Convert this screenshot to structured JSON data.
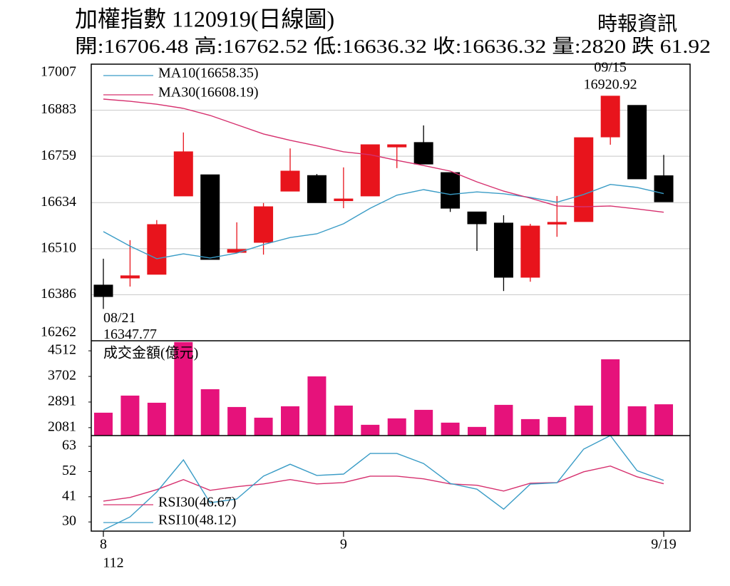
{
  "header": {
    "title": "加權指數 1120919(日線圖)",
    "source": "時報資訊",
    "summary": "開:16706.48 高:16762.52 低:16636.32 收:16636.32 量:2820 跌 61.92"
  },
  "chart_data": [
    {
      "type": "candlestick",
      "ylim": [
        16262,
        17007
      ],
      "yticks": [
        16262,
        16386,
        16510,
        16634,
        16759,
        16883,
        17007
      ],
      "grid": true,
      "up_color": "#e8141c",
      "down_color": "#000000",
      "open": [
        16412,
        16431,
        16441,
        16652,
        16709,
        16500,
        16527,
        16665,
        16707,
        16640,
        16652,
        16784,
        16796,
        16715,
        16609,
        16579,
        16433,
        16577,
        16583,
        16811,
        16896,
        16706.48
      ],
      "high": [
        16483,
        16533,
        16587,
        16823,
        16709,
        16581,
        16633,
        16780,
        16711,
        16729,
        16790,
        16790,
        16842,
        16715,
        16609,
        16600,
        16577,
        16652,
        16809,
        16920.92,
        16896,
        16762.52
      ],
      "low": [
        16347.77,
        16408,
        16441,
        16652,
        16481,
        16498,
        16494,
        16665,
        16634,
        16619,
        16652,
        16727,
        16738,
        16609,
        16504,
        16396,
        16421,
        16542,
        16583,
        16790,
        16698,
        16636.32
      ],
      "close": [
        16381,
        16437,
        16575,
        16771,
        16481,
        16508,
        16623,
        16719,
        16634,
        16644,
        16790,
        16790,
        16738,
        16619,
        16577,
        16433,
        16571,
        16581,
        16809,
        16920.92,
        16698,
        16636.32
      ],
      "series": [
        {
          "name": "MA10(16658.35)",
          "color": "#3a9cc6",
          "values": [
            16556,
            16517,
            16483,
            16496,
            16485,
            16498,
            16521,
            16540,
            16550,
            16577,
            16619,
            16654,
            16669,
            16656,
            16663,
            16658,
            16648,
            16635,
            16656,
            16683,
            16675,
            16658.35
          ]
        },
        {
          "name": "MA30(16608.19)",
          "color": "#d6306e",
          "values": [
            16913,
            16907,
            16899,
            16888,
            16869,
            16844,
            16819,
            16802,
            16787,
            16771,
            16763,
            16748,
            16734,
            16719,
            16690,
            16665,
            16646,
            16625,
            16623,
            16625,
            16617,
            16608.19
          ]
        }
      ],
      "annotations": [
        {
          "text": "09/15",
          "value": 16920.92,
          "at": "high"
        },
        {
          "text": "08/21",
          "value": 16347.77,
          "at": "low"
        }
      ]
    },
    {
      "type": "bar",
      "ylim": [
        1830,
        4830
      ],
      "yticks": [
        2081,
        2891,
        3702,
        4512
      ],
      "grid": false,
      "series": [
        {
          "name": "成交金額(億元)",
          "color": "#e6127b",
          "values": [
            2554,
            3095,
            2869,
            4790,
            3297,
            2734,
            2396,
            2757,
            3703,
            2779,
            2171,
            2374,
            2644,
            2239,
            2104,
            2802,
            2351,
            2419,
            2779,
            4243,
            2757,
            2820
          ]
        }
      ]
    },
    {
      "type": "line",
      "ylim": [
        26,
        67.7
      ],
      "yticks": [
        30,
        41,
        52,
        63
      ],
      "grid": false,
      "categories": [
        "8",
        null,
        null,
        null,
        null,
        null,
        null,
        null,
        null,
        "9",
        null,
        null,
        null,
        null,
        null,
        null,
        null,
        null,
        null,
        null,
        null,
        "9/19"
      ],
      "x_sublabel": "112",
      "series": [
        {
          "name": "RSI30(46.67)",
          "color": "#d6306e",
          "values": [
            39.1,
            40.7,
            44.1,
            48.5,
            43.8,
            45.4,
            46.6,
            48.5,
            46.6,
            47.2,
            50,
            50,
            48.8,
            46.6,
            46,
            43.5,
            46.9,
            47.2,
            51.9,
            54.4,
            49.7,
            46.67
          ]
        },
        {
          "name": "RSI10(48.12)",
          "color": "#3a9cc6",
          "values": [
            26.5,
            32.2,
            43.1,
            57.1,
            38.4,
            40,
            50,
            55.2,
            50.3,
            50.9,
            59.9,
            59.9,
            55.5,
            46.8,
            44.3,
            35.6,
            46.5,
            47.1,
            61.8,
            67.7,
            52.4,
            48.12
          ]
        }
      ]
    }
  ]
}
